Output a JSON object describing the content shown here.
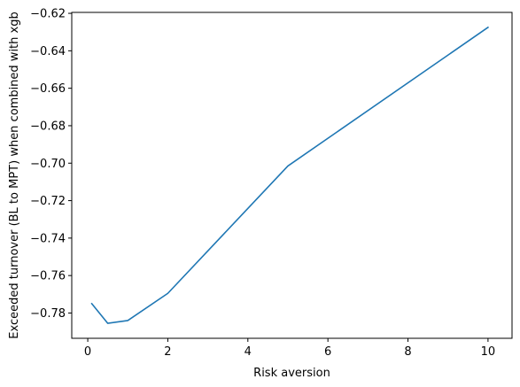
{
  "chart_data": {
    "type": "line",
    "title": "",
    "xlabel": "Risk aversion",
    "ylabel": "Exceeded turnover (BL to MPT) when combined with xgb",
    "xlim": [
      -0.4,
      10.6
    ],
    "ylim": [
      -0.7935,
      -0.6195
    ],
    "x_ticks": [
      0,
      2,
      4,
      6,
      8,
      10
    ],
    "x_tick_labels": [
      "0",
      "2",
      "4",
      "6",
      "8",
      "10"
    ],
    "y_ticks": [
      -0.78,
      -0.76,
      -0.74,
      -0.72,
      -0.7,
      -0.68,
      -0.66,
      -0.64,
      -0.62
    ],
    "y_tick_labels": [
      "−0.78",
      "−0.76",
      "−0.74",
      "−0.72",
      "−0.70",
      "−0.68",
      "−0.66",
      "−0.64",
      "−0.62"
    ],
    "grid": false,
    "series": [
      {
        "color": "#1f77b4",
        "x": [
          0.1,
          0.5,
          1,
          2,
          5,
          10
        ],
        "y": [
          -0.775,
          -0.7855,
          -0.784,
          -0.7695,
          -0.7015,
          -0.6275
        ]
      }
    ]
  }
}
